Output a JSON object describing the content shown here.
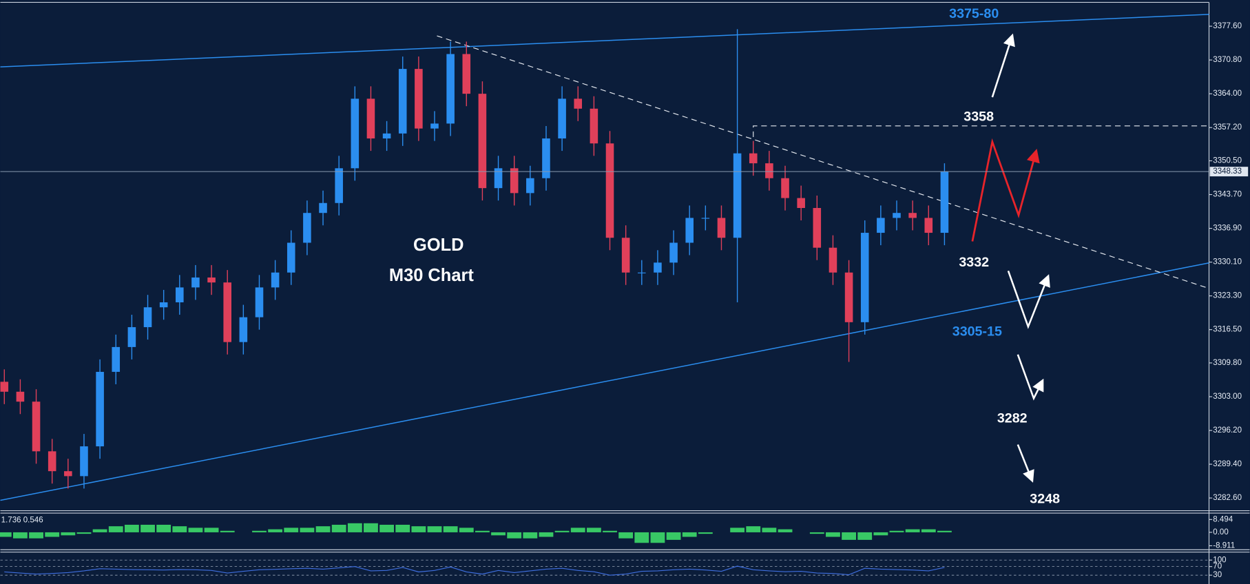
{
  "chart_data": [
    {
      "type": "candlestick",
      "title": "GOLD",
      "subtitle": "M30 Chart",
      "open": [
        3306,
        3304,
        3302,
        3292,
        3288,
        3287,
        3293,
        3308,
        3313,
        3317,
        3321,
        3322,
        3325,
        3327,
        3326,
        3314,
        3319,
        3325,
        3328,
        3334,
        3340,
        3342,
        3349,
        3363,
        3355,
        3356,
        3369,
        3357,
        3358,
        3372,
        3364,
        3345,
        3349,
        3344,
        3347,
        3355,
        3363,
        3361,
        3354,
        3335,
        3328,
        3328,
        3330,
        3334,
        3339,
        3339,
        3335,
        3352,
        3350,
        3347,
        3343,
        3341,
        3333,
        3328,
        3318,
        3336,
        3339,
        3340,
        3339,
        3336
      ],
      "high": [
        3308.5,
        3306.5,
        3304.5,
        3294.5,
        3290.5,
        3295.5,
        3310.5,
        3315.5,
        3319.5,
        3323.5,
        3324.5,
        3327.5,
        3329.5,
        3329.5,
        3328.5,
        3321.5,
        3327.5,
        3330.5,
        3336.5,
        3342.5,
        3344.5,
        3351.5,
        3365.5,
        3365.5,
        3358.5,
        3371.5,
        3371.5,
        3360.5,
        3374.5,
        3374.5,
        3366.5,
        3351.5,
        3351.5,
        3349.5,
        3357.5,
        3365.5,
        3365.5,
        3363.5,
        3356.5,
        3337.5,
        3330.5,
        3332.5,
        3336.5,
        3341.5,
        3341.5,
        3341.5,
        3377,
        3354.5,
        3352.5,
        3349.5,
        3345.5,
        3343.5,
        3335.5,
        3330.5,
        3338.5,
        3341.5,
        3342.5,
        3342.5,
        3341.5,
        3350
      ],
      "low": [
        3301.5,
        3299.5,
        3289.5,
        3285.5,
        3284.5,
        3284.5,
        3290.5,
        3305.5,
        3310.5,
        3314.5,
        3318.5,
        3319.5,
        3322.5,
        3323.5,
        3311.5,
        3311.5,
        3316.5,
        3322.5,
        3325.5,
        3331.5,
        3337.5,
        3339.5,
        3346.5,
        3352.5,
        3352.5,
        3353.5,
        3354.5,
        3354.5,
        3355.5,
        3361.5,
        3342.5,
        3342.5,
        3341.5,
        3341.5,
        3344.5,
        3352.5,
        3358.5,
        3351.5,
        3332.5,
        3325.5,
        3325.5,
        3325.5,
        3327.5,
        3331.5,
        3336.5,
        3332.5,
        3322,
        3347.5,
        3344.5,
        3340.5,
        3338.5,
        3330.5,
        3325.5,
        3310,
        3315.5,
        3333.5,
        3336.5,
        3336.5,
        3333.5,
        3333.5
      ],
      "close": [
        3304,
        3302,
        3292,
        3288,
        3287,
        3293,
        3308,
        3313,
        3317,
        3321,
        3322,
        3325,
        3327,
        3326,
        3314,
        3319,
        3325,
        3328,
        3334,
        3340,
        3342,
        3349,
        3363,
        3355,
        3356,
        3369,
        3357,
        3358,
        3372,
        3364,
        3345,
        3349,
        3344,
        3347,
        3355,
        3363,
        3361,
        3354,
        3335,
        3328,
        3328,
        3330,
        3334,
        3339,
        3339,
        3335,
        3352,
        3350,
        3347,
        3343,
        3341,
        3333,
        3328,
        3318,
        3336,
        3339,
        3340,
        3339,
        3336,
        3348.33
      ],
      "up_color": "#2b8ef0",
      "down_color": "#e0405a",
      "ylim": [
        3280.2,
        3382.4
      ],
      "yticks": [
        {
          "value": 3377.6,
          "label": "3377.60"
        },
        {
          "value": 3370.8,
          "label": "3370.80"
        },
        {
          "value": 3364,
          "label": "3364.00"
        },
        {
          "value": 3357.2,
          "label": "3357.20"
        },
        {
          "value": 3350.5,
          "label": "3350.50"
        },
        {
          "value": 3343.7,
          "label": "3343.70"
        },
        {
          "value": 3336.9,
          "label": "3336.90"
        },
        {
          "value": 3330.1,
          "label": "3330.10"
        },
        {
          "value": 3323.3,
          "label": "3323.30"
        },
        {
          "value": 3316.5,
          "label": "3316.50"
        },
        {
          "value": 3309.8,
          "label": "3309.80"
        },
        {
          "value": 3303,
          "label": "3303.00"
        },
        {
          "value": 3296.2,
          "label": "3296.20"
        },
        {
          "value": 3289.4,
          "label": "3289.40"
        },
        {
          "value": 3282.6,
          "label": "3282.60"
        }
      ],
      "current_price": 3348.33,
      "annotations": [
        "3375-80",
        "3358",
        "3332",
        "3305-15",
        "3282",
        "3248"
      ]
    },
    {
      "type": "bar",
      "title": "1.736 0.546",
      "color": "#3ddc6a",
      "values": [
        -3,
        -4,
        -4,
        -3,
        -2,
        -1,
        2,
        4,
        5,
        5,
        5,
        4,
        3,
        3,
        1,
        0,
        1,
        2,
        3,
        3,
        4,
        5,
        6,
        6,
        5,
        5,
        4,
        4,
        4,
        3,
        1,
        -2,
        -4,
        -4,
        -3,
        1,
        3,
        3,
        1,
        -4,
        -7,
        -7,
        -5,
        -3,
        -1,
        0,
        3,
        4,
        3,
        2,
        0,
        -1,
        -3,
        -5,
        -5,
        -2,
        1,
        2,
        2,
        1
      ],
      "ylim": [
        -11.55,
        12.2
      ],
      "yticks": [
        8.494,
        {
          "value": 0,
          "label": "0.00"
        },
        -8.911
      ]
    },
    {
      "type": "line",
      "color": "#3f6fe0",
      "values": [
        45,
        40,
        35,
        38,
        42,
        50,
        60,
        58,
        56,
        55,
        54,
        56,
        55,
        52,
        40,
        48,
        55,
        57,
        60,
        62,
        58,
        64,
        70,
        50,
        52,
        66,
        45,
        52,
        68,
        45,
        35,
        52,
        42,
        50,
        58,
        62,
        52,
        46,
        30,
        35,
        48,
        50,
        55,
        58,
        54,
        48,
        72,
        55,
        50,
        46,
        48,
        40,
        38,
        32,
        62,
        58,
        56,
        54,
        50,
        66
      ],
      "ylim": [
        -11,
        129.5
      ],
      "yticks": [
        100,
        70,
        30
      ]
    }
  ]
}
